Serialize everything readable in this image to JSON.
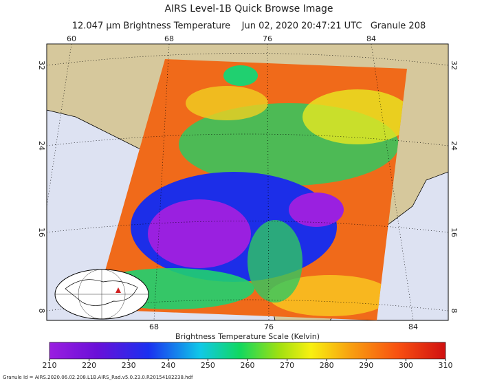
{
  "header": {
    "title": "AIRS Level-1B Quick Browse Image",
    "subtitle": "12.047 μm Brightness Temperature    Jun 02, 2020 20:47:21 UTC   Granule 208"
  },
  "map": {
    "lon_top": [
      60,
      68,
      76,
      84
    ],
    "lon_bottom": [
      68,
      76,
      84
    ],
    "lat_left": [
      32,
      24,
      16,
      8
    ],
    "lat_right": [
      32,
      24,
      16,
      8
    ]
  },
  "colorbar": {
    "title": "Brightness Temperature Scale (Kelvin)",
    "lim": [
      210,
      310
    ],
    "ticks": [
      210,
      220,
      230,
      240,
      250,
      260,
      270,
      280,
      290,
      300,
      310
    ]
  },
  "footer": {
    "granule_id": "Granule Id = AIRS.2020.06.02.208.L1B.AIRS_Rad.v5.0.23.0.R20154182238.hdf"
  }
}
